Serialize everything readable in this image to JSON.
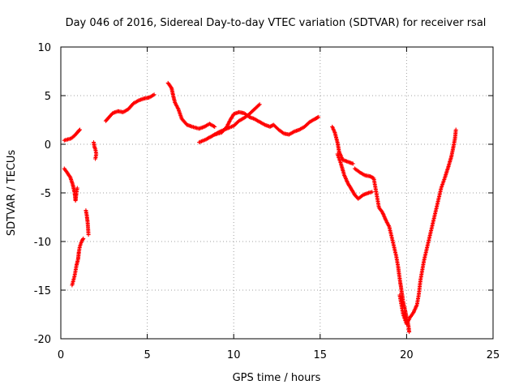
{
  "chart_data": {
    "type": "scatter",
    "title": "Day 046 of 2016, Sidereal Day-to-day VTEC variation (SDTVAR) for receiver rsal",
    "xlabel": "GPS time / hours",
    "ylabel": "SDTVAR / TECUs",
    "xlim": [
      0,
      25
    ],
    "ylim": [
      -20,
      10
    ],
    "xticks": [
      0,
      5,
      10,
      15,
      20,
      25
    ],
    "yticks": [
      -20,
      -15,
      -10,
      -5,
      0,
      5,
      10
    ],
    "grid": true,
    "marker": "+",
    "color": "#ff0000",
    "series": [
      {
        "name": "rsal",
        "segments": [
          [
            [
              0.2,
              0.4
            ],
            [
              0.4,
              0.5
            ],
            [
              0.6,
              0.6
            ],
            [
              0.8,
              0.9
            ],
            [
              1.0,
              1.3
            ],
            [
              1.1,
              1.5
            ]
          ],
          [
            [
              0.2,
              -2.5
            ],
            [
              0.4,
              -3.0
            ],
            [
              0.55,
              -3.4
            ],
            [
              0.7,
              -4.2
            ],
            [
              0.8,
              -5.0
            ],
            [
              0.85,
              -5.8
            ],
            [
              0.9,
              -5.0
            ],
            [
              0.95,
              -4.5
            ]
          ],
          [
            [
              0.65,
              -14.5
            ],
            [
              0.8,
              -13.5
            ],
            [
              0.9,
              -12.5
            ],
            [
              1.0,
              -11.8
            ],
            [
              1.05,
              -11.0
            ],
            [
              1.1,
              -10.5
            ],
            [
              1.2,
              -10.0
            ],
            [
              1.3,
              -9.7
            ]
          ],
          [
            [
              1.45,
              -6.8
            ],
            [
              1.5,
              -7.3
            ],
            [
              1.55,
              -8.0
            ],
            [
              1.6,
              -9.3
            ]
          ],
          [
            [
              1.9,
              0.2
            ],
            [
              1.95,
              -0.3
            ],
            [
              2.0,
              -0.5
            ],
            [
              2.05,
              -1.0
            ],
            [
              2.0,
              -1.5
            ]
          ],
          [
            [
              2.6,
              2.4
            ],
            [
              2.8,
              2.8
            ],
            [
              3.0,
              3.2
            ],
            [
              3.3,
              3.4
            ],
            [
              3.6,
              3.3
            ],
            [
              3.9,
              3.6
            ],
            [
              4.2,
              4.2
            ],
            [
              4.5,
              4.5
            ],
            [
              4.8,
              4.7
            ],
            [
              5.1,
              4.8
            ],
            [
              5.4,
              5.1
            ]
          ],
          [
            [
              6.2,
              6.3
            ],
            [
              6.4,
              5.8
            ],
            [
              6.5,
              5.0
            ],
            [
              6.6,
              4.3
            ],
            [
              6.8,
              3.6
            ],
            [
              7.0,
              2.6
            ],
            [
              7.3,
              2.0
            ],
            [
              7.6,
              1.8
            ],
            [
              8.0,
              1.6
            ],
            [
              8.3,
              1.8
            ],
            [
              8.6,
              2.1
            ],
            [
              8.9,
              1.8
            ]
          ],
          [
            [
              8.0,
              0.2
            ],
            [
              8.4,
              0.5
            ],
            [
              8.8,
              0.9
            ],
            [
              9.2,
              1.3
            ],
            [
              9.6,
              1.6
            ],
            [
              10.0,
              1.9
            ],
            [
              10.3,
              2.4
            ],
            [
              10.6,
              2.7
            ],
            [
              10.9,
              3.1
            ],
            [
              11.2,
              3.6
            ],
            [
              11.5,
              4.1
            ]
          ],
          [
            [
              8.9,
              1.0
            ],
            [
              9.3,
              1.2
            ],
            [
              9.6,
              1.8
            ],
            [
              9.8,
              2.5
            ],
            [
              10.0,
              3.1
            ],
            [
              10.3,
              3.3
            ],
            [
              10.6,
              3.2
            ],
            [
              10.9,
              2.8
            ],
            [
              11.2,
              2.6
            ],
            [
              11.5,
              2.3
            ],
            [
              11.8,
              2.0
            ],
            [
              12.1,
              1.8
            ],
            [
              12.3,
              2.0
            ],
            [
              12.6,
              1.5
            ],
            [
              12.9,
              1.1
            ],
            [
              13.2,
              1.0
            ],
            [
              13.5,
              1.3
            ],
            [
              13.8,
              1.5
            ],
            [
              14.1,
              1.8
            ],
            [
              14.4,
              2.3
            ],
            [
              14.7,
              2.6
            ],
            [
              14.9,
              2.8
            ]
          ],
          [
            [
              15.7,
              1.8
            ],
            [
              15.85,
              1.2
            ],
            [
              16.0,
              0.2
            ],
            [
              16.1,
              -0.8
            ],
            [
              16.3,
              -1.6
            ],
            [
              16.6,
              -1.8
            ],
            [
              16.9,
              -2.0
            ]
          ],
          [
            [
              16.0,
              -1.0
            ],
            [
              16.2,
              -2.0
            ],
            [
              16.4,
              -3.2
            ],
            [
              16.6,
              -4.0
            ],
            [
              16.8,
              -4.6
            ],
            [
              17.0,
              -5.2
            ],
            [
              17.2,
              -5.6
            ],
            [
              17.5,
              -5.2
            ],
            [
              17.8,
              -5.0
            ],
            [
              18.0,
              -4.9
            ]
          ],
          [
            [
              17.0,
              -2.5
            ],
            [
              17.3,
              -2.9
            ],
            [
              17.6,
              -3.2
            ],
            [
              17.9,
              -3.3
            ],
            [
              18.1,
              -3.5
            ],
            [
              18.2,
              -4.5
            ],
            [
              18.4,
              -6.5
            ],
            [
              18.6,
              -7.0
            ],
            [
              18.8,
              -7.8
            ],
            [
              19.0,
              -8.5
            ],
            [
              19.2,
              -10.0
            ],
            [
              19.4,
              -11.5
            ],
            [
              19.5,
              -12.5
            ],
            [
              19.6,
              -13.8
            ],
            [
              19.7,
              -15.0
            ],
            [
              19.8,
              -16.2
            ],
            [
              19.9,
              -17.0
            ],
            [
              20.0,
              -17.8
            ],
            [
              20.1,
              -18.6
            ],
            [
              20.15,
              -19.3
            ]
          ],
          [
            [
              19.6,
              -15.5
            ],
            [
              19.8,
              -17.5
            ],
            [
              20.0,
              -18.5
            ],
            [
              20.2,
              -17.8
            ],
            [
              20.4,
              -17.3
            ],
            [
              20.6,
              -16.5
            ],
            [
              20.7,
              -15.5
            ],
            [
              20.8,
              -14.0
            ],
            [
              20.9,
              -13.0
            ],
            [
              21.0,
              -12.0
            ],
            [
              21.2,
              -10.5
            ],
            [
              21.4,
              -9.0
            ],
            [
              21.6,
              -7.5
            ],
            [
              21.8,
              -6.0
            ],
            [
              22.0,
              -4.5
            ],
            [
              22.2,
              -3.5
            ],
            [
              22.4,
              -2.4
            ],
            [
              22.6,
              -1.2
            ],
            [
              22.7,
              -0.3
            ],
            [
              22.8,
              0.6
            ],
            [
              22.85,
              1.5
            ]
          ]
        ]
      }
    ]
  }
}
